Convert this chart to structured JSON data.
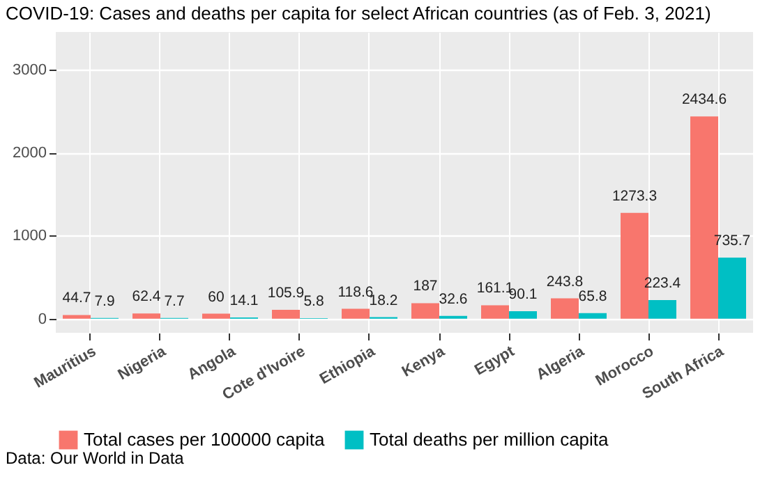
{
  "chart_data": {
    "type": "bar",
    "title": "COVID-19: Cases and deaths per capita for select African countries (as of Feb. 3, 2021)",
    "categories": [
      "Mauritius",
      "Nigeria",
      "Angola",
      "Cote d'Ivoire",
      "Ethiopia",
      "Kenya",
      "Egypt",
      "Algeria",
      "Morocco",
      "South Africa"
    ],
    "series": [
      {
        "name": "Total cases per 100000 capita",
        "color": "#f8766d",
        "values": [
          44.7,
          62.4,
          60,
          105.9,
          118.6,
          187,
          161.1,
          243.8,
          1273.3,
          2434.6
        ]
      },
      {
        "name": "Total deaths per million capita",
        "color": "#00bfc4",
        "values": [
          7.9,
          7.7,
          14.1,
          5.8,
          18.2,
          32.6,
          90.1,
          65.8,
          223.4,
          735.7
        ]
      }
    ],
    "ylim": [
      -170,
      3450
    ],
    "yticks": [
      0,
      1000,
      2000,
      3000
    ],
    "grid": true,
    "legend": "bottom",
    "data_labels": true,
    "annotations": [
      "Data: Our World in Data"
    ]
  }
}
